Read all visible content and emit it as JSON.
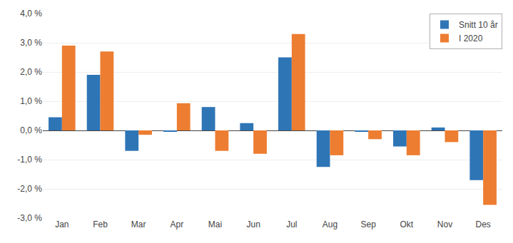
{
  "chart_data": {
    "type": "bar",
    "categories": [
      "Jan",
      "Feb",
      "Mar",
      "Apr",
      "Mai",
      "Jun",
      "Jul",
      "Aug",
      "Sep",
      "Okt",
      "Nov",
      "Des"
    ],
    "series": [
      {
        "name": "Snitt 10 år",
        "color": "#2e75b6",
        "values": [
          0.45,
          1.9,
          -0.7,
          -0.05,
          0.8,
          0.25,
          2.5,
          -1.25,
          -0.05,
          -0.55,
          0.1,
          -1.7
        ]
      },
      {
        "name": "I 2020",
        "color": "#ed7d31",
        "values": [
          2.9,
          2.7,
          -0.15,
          0.93,
          -0.7,
          -0.8,
          3.3,
          -0.85,
          -0.3,
          -0.85,
          -0.4,
          -2.55
        ]
      }
    ],
    "ylim": [
      -3.0,
      4.0
    ],
    "yticks": [
      {
        "value": -3.0,
        "label": "-3,0 %"
      },
      {
        "value": -2.0,
        "label": "-2,0 %"
      },
      {
        "value": -1.0,
        "label": "-1,0 %"
      },
      {
        "value": 0.0,
        "label": "0,0 %"
      },
      {
        "value": 1.0,
        "label": "1,0 %"
      },
      {
        "value": 2.0,
        "label": "2,0 %"
      },
      {
        "value": 3.0,
        "label": "3,0 %"
      },
      {
        "value": 4.0,
        "label": "4,0 %"
      }
    ],
    "grid": true,
    "legend": "upper right"
  }
}
